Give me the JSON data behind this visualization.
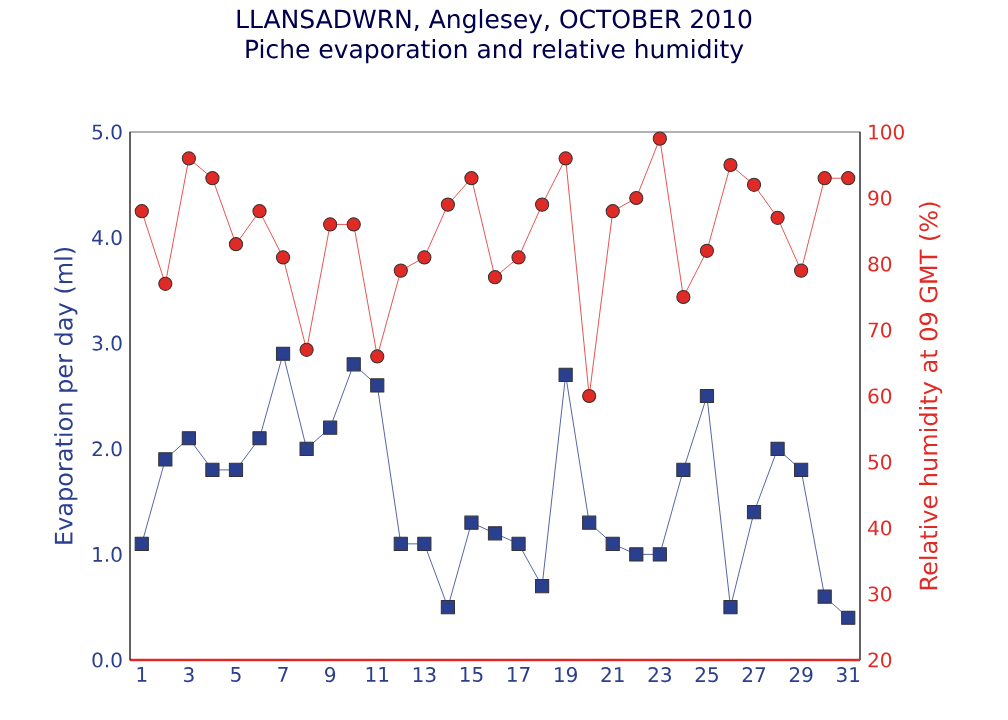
{
  "chart_data": {
    "type": "line",
    "title": "LLANSADWRN, Anglesey, OCTOBER 2010",
    "subtitle": "Piche evaporation and relative humidity",
    "ylabel": "Evaporation per day (ml)",
    "y2label": "Relative humidity at 09 GMT (%)",
    "x": [
      1,
      2,
      3,
      4,
      5,
      6,
      7,
      8,
      9,
      10,
      11,
      12,
      13,
      14,
      15,
      16,
      17,
      18,
      19,
      20,
      21,
      22,
      23,
      24,
      25,
      26,
      27,
      28,
      29,
      30,
      31
    ],
    "xlim": [
      0.5,
      31.5
    ],
    "xticks": [
      1,
      3,
      5,
      7,
      9,
      11,
      13,
      15,
      17,
      19,
      21,
      23,
      25,
      27,
      29,
      31
    ],
    "ylim": [
      0,
      5
    ],
    "yticks": [
      {
        "value": 0,
        "label": "0.0"
      },
      {
        "value": 1,
        "label": "1.0"
      },
      {
        "value": 2,
        "label": "2.0"
      },
      {
        "value": 3,
        "label": "3.0"
      },
      {
        "value": 4,
        "label": "4.0"
      },
      {
        "value": 5,
        "label": "5.0"
      }
    ],
    "y2lim": [
      20,
      100
    ],
    "y2ticks": [
      20,
      30,
      40,
      50,
      60,
      70,
      80,
      90,
      100
    ],
    "series": [
      {
        "color": "#2b3f8f",
        "marker": "square",
        "values": [
          1.1,
          1.9,
          2.1,
          1.8,
          1.8,
          2.1,
          2.9,
          2.0,
          2.2,
          2.8,
          2.6,
          1.1,
          1.1,
          0.5,
          1.3,
          1.2,
          1.1,
          0.7,
          2.7,
          1.3,
          1.1,
          1.0,
          1.0,
          1.8,
          2.5,
          0.5,
          1.4,
          2.0,
          1.8,
          0.6,
          0.4
        ]
      },
      {
        "color": "#e02a25",
        "marker": "circle",
        "axis": "y2",
        "values": [
          88,
          77,
          96,
          93,
          83,
          88,
          81,
          67,
          86,
          86,
          66,
          79,
          81,
          89,
          93,
          78,
          81,
          89,
          96,
          60,
          88,
          90,
          99,
          75,
          82,
          95,
          92,
          87,
          79,
          93,
          93
        ]
      }
    ],
    "grid": false
  }
}
